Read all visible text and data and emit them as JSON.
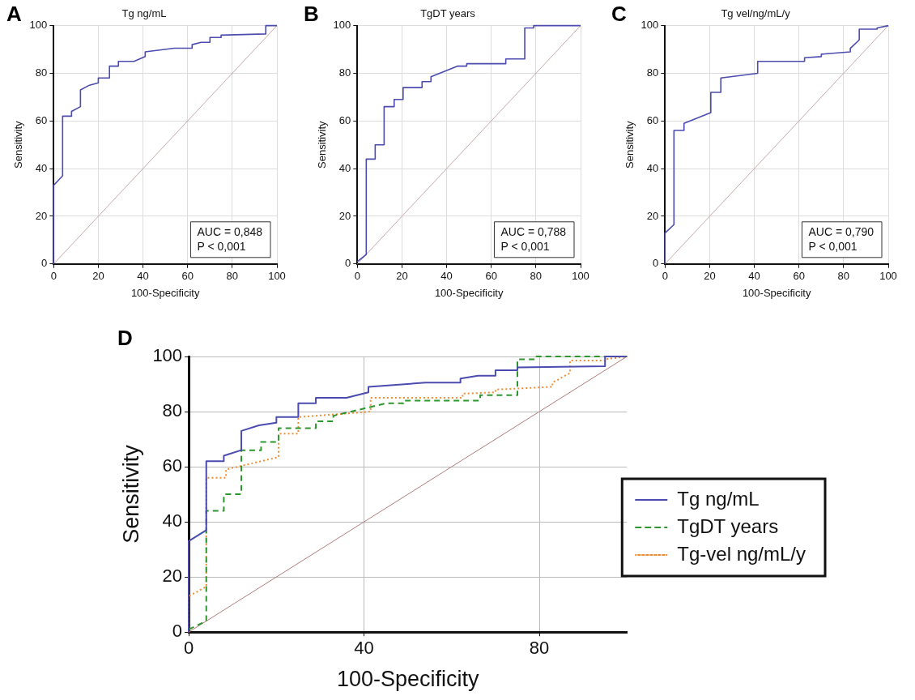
{
  "chart_data": [
    {
      "type": "line",
      "title": "Tg ng/mL",
      "xlabel": "100-Specificity",
      "ylabel": "Sensitivity",
      "annotations": [
        "A",
        "AUC = 0,848",
        "P < 0,001"
      ],
      "xlim": [
        0,
        100
      ],
      "ylim": [
        0,
        100
      ],
      "xticks": [
        0,
        20,
        40,
        60,
        80,
        100
      ],
      "yticks": [
        0,
        20,
        40,
        60,
        80,
        100
      ],
      "grid": true,
      "legend": false,
      "marker": "none",
      "series": [
        {
          "color": "#4b4bb0",
          "line_style": "solid",
          "x": [
            0,
            0,
            4,
            4,
            8,
            8,
            12,
            12,
            16,
            20,
            20,
            25,
            25,
            29,
            29,
            36,
            41,
            41,
            54,
            62,
            62,
            66,
            70,
            70,
            75,
            75,
            95,
            95,
            100
          ],
          "values": [
            0,
            33,
            37,
            62,
            62,
            64,
            66,
            73,
            75,
            76,
            78,
            78,
            83,
            83,
            85,
            85,
            87,
            89,
            90.5,
            90.5,
            92,
            93,
            93,
            95,
            95,
            96,
            96.5,
            100,
            100
          ]
        },
        {
          "color": "#c8a8a8",
          "line_style": "solid",
          "x": [
            0,
            100
          ],
          "values": [
            0,
            100
          ]
        }
      ]
    },
    {
      "type": "line",
      "title": "TgDT years",
      "xlabel": "100-Specificity",
      "ylabel": "Sensitivity",
      "annotations": [
        "B",
        "AUC = 0,788",
        "P < 0,001"
      ],
      "xlim": [
        0,
        100
      ],
      "ylim": [
        0,
        100
      ],
      "xticks": [
        0,
        20,
        40,
        60,
        80,
        100
      ],
      "yticks": [
        0,
        20,
        40,
        60,
        80,
        100
      ],
      "grid": true,
      "legend": false,
      "marker": "none",
      "series": [
        {
          "color": "#4b4bb0",
          "line_style": "solid",
          "x": [
            0,
            4,
            4,
            8,
            8,
            12,
            12,
            16.5,
            16.5,
            20.5,
            20.5,
            29,
            29,
            33,
            33,
            45,
            49,
            49,
            66.5,
            66.5,
            75,
            75,
            79,
            79,
            100
          ],
          "values": [
            1,
            4,
            44,
            44,
            50,
            50,
            66,
            66,
            69,
            69,
            74,
            74,
            76.5,
            76.5,
            78.5,
            83,
            83,
            84,
            84,
            86,
            86,
            99,
            99,
            100,
            100
          ]
        },
        {
          "color": "#c8a8a8",
          "line_style": "solid",
          "x": [
            0,
            100
          ],
          "values": [
            0,
            100
          ]
        }
      ]
    },
    {
      "type": "line",
      "title": "Tg vel/ng/mL/y",
      "xlabel": "100-Specificity",
      "ylabel": "Sensitivity",
      "annotations": [
        "C",
        "AUC = 0,790",
        "P < 0,001"
      ],
      "xlim": [
        0,
        100
      ],
      "ylim": [
        0,
        100
      ],
      "xticks": [
        0,
        20,
        40,
        60,
        80,
        100
      ],
      "yticks": [
        0,
        20,
        40,
        60,
        80,
        100
      ],
      "grid": true,
      "legend": false,
      "marker": "none",
      "series": [
        {
          "color": "#4b4bb0",
          "line_style": "solid",
          "x": [
            0,
            0,
            4,
            4,
            8.5,
            8.5,
            20.5,
            20.5,
            25,
            25,
            41.5,
            41.5,
            62.5,
            62.5,
            70,
            70,
            83,
            83,
            87,
            87,
            95,
            95,
            100
          ],
          "values": [
            0,
            13,
            16.5,
            56,
            56,
            59,
            63.5,
            72,
            72,
            78,
            80,
            85,
            85,
            86.5,
            87,
            88,
            89,
            90.5,
            94,
            98.5,
            98.5,
            99,
            100
          ]
        },
        {
          "color": "#c8a8a8",
          "line_style": "solid",
          "x": [
            0,
            100
          ],
          "values": [
            0,
            100
          ]
        }
      ]
    },
    {
      "type": "line",
      "xlabel": "100-Specificity",
      "ylabel": "Sensitivity",
      "annotations": [
        "D"
      ],
      "xlim": [
        0,
        100
      ],
      "ylim": [
        0,
        100
      ],
      "xticks": [
        0,
        40,
        80
      ],
      "yticks": [
        0,
        20,
        40,
        60,
        80,
        100
      ],
      "grid": true,
      "legend": "right",
      "marker": "none",
      "series": [
        {
          "name": "Tg ng/mL",
          "color": "#4b4bb0",
          "line_style": "solid",
          "x": [
            0,
            0,
            4,
            4,
            8,
            8,
            12,
            12,
            16,
            20,
            20,
            25,
            25,
            29,
            29,
            36,
            41,
            41,
            54,
            62,
            62,
            66,
            70,
            70,
            75,
            75,
            95,
            95,
            100
          ],
          "values": [
            0,
            33,
            37,
            62,
            62,
            64,
            66,
            73,
            75,
            76,
            78,
            78,
            83,
            83,
            85,
            85,
            87,
            89,
            90.5,
            90.5,
            92,
            93,
            93,
            95,
            95,
            96,
            96.5,
            100,
            100
          ]
        },
        {
          "name": "TgDT years",
          "color": "#2e962e",
          "line_style": "dashed",
          "x": [
            0,
            4,
            4,
            8,
            8,
            12,
            12,
            16.5,
            16.5,
            20.5,
            20.5,
            29,
            29,
            33,
            33,
            45,
            49,
            49,
            66.5,
            66.5,
            75,
            75,
            79,
            79,
            100
          ],
          "values": [
            1,
            4,
            44,
            44,
            50,
            50,
            66,
            66,
            69,
            69,
            74,
            74,
            76.5,
            76.5,
            78.5,
            83,
            83,
            84,
            84,
            86,
            86,
            99,
            99,
            100,
            100
          ]
        },
        {
          "name": "Tg-vel ng/mL/y",
          "color": "#f08c32",
          "line_style": "dotted",
          "x": [
            0,
            0,
            4,
            4,
            8.5,
            8.5,
            20.5,
            20.5,
            25,
            25,
            41.5,
            41.5,
            62.5,
            62.5,
            70,
            70,
            83,
            83,
            87,
            87,
            95,
            95,
            100
          ],
          "values": [
            0,
            13,
            16.5,
            56,
            56,
            59,
            63.5,
            72,
            72,
            78,
            80,
            85,
            85,
            86.5,
            87,
            88,
            89,
            90.5,
            94,
            98.5,
            98.5,
            99,
            100
          ]
        },
        {
          "color": "#b07c7c",
          "line_style": "solid",
          "x": [
            0,
            100
          ],
          "values": [
            0,
            100
          ]
        }
      ]
    }
  ]
}
